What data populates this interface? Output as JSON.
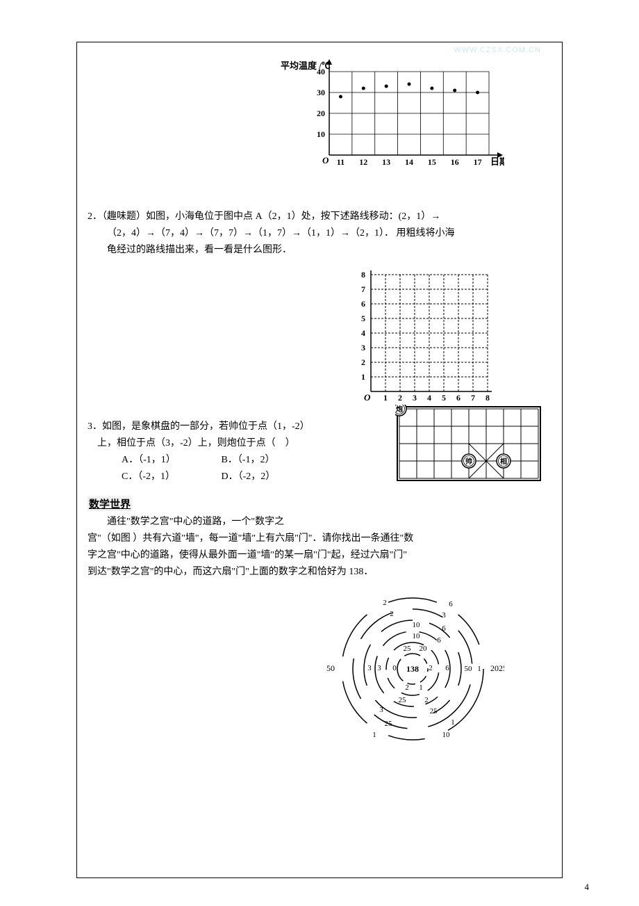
{
  "watermark": "WWW.CZSX.COM.CN",
  "page_number": "4",
  "chart1": {
    "type": "scatter",
    "y_axis_label": "平均温度 /℃",
    "x_axis_label": "日期",
    "x_ticks": [
      "11",
      "12",
      "13",
      "14",
      "15",
      "16",
      "17"
    ],
    "y_ticks": [
      "10",
      "20",
      "30",
      "40"
    ],
    "ylim": [
      0,
      40
    ],
    "ytick_step": 10,
    "points_x": [
      11,
      12,
      13,
      14,
      15,
      16,
      17
    ],
    "points_y": [
      28,
      32,
      33,
      34,
      32,
      31,
      30
    ],
    "axis_color": "#000000",
    "grid_color": "#000000",
    "point_color": "#000000",
    "background_color": "#ffffff",
    "label_fontsize": 13
  },
  "problem2": {
    "number": "2．",
    "tag": "（趣味题）",
    "text_line1": "如图，小海龟位于图中点 A（2，1）处，按下述路线移动：(2，1）→",
    "text_line2": "（2，4）→（7，4）→（7，7）→（1，7）→（1，1）→（2，1）． 用粗线将小海",
    "text_line3": "龟经过的路线描出来，看一看是什么图形．"
  },
  "grid2": {
    "type": "grid",
    "x_ticks": [
      "1",
      "2",
      "3",
      "4",
      "5",
      "6",
      "7",
      "8"
    ],
    "y_ticks": [
      "1",
      "2",
      "3",
      "4",
      "5",
      "6",
      "7",
      "8"
    ],
    "origin_label": "O",
    "line_color": "#000000",
    "dash": "3,2",
    "cell": 21
  },
  "problem3": {
    "number": "3．",
    "text_line1": "如图，是象棋盘的一部分，若帅位于点（1，-2）",
    "text_line2": "上，相位于点（3，-2）上，则炮位于点（　）",
    "options": {
      "A": "A．（-1，1）",
      "B": "B．（-1，2）",
      "C": "C．（-2，1）",
      "D": "D．（-2，2）"
    }
  },
  "chess": {
    "type": "grid",
    "cols": 8,
    "rows": 4,
    "cell": 25,
    "border_color": "#000000",
    "pieces": {
      "pao": {
        "label": "炮",
        "col": 0,
        "row": 0
      },
      "shuai": {
        "label": "帅",
        "col": 4,
        "row": 3
      },
      "xiang": {
        "label": "相",
        "col": 6,
        "row": 3
      }
    },
    "cross_col": 5,
    "cross_row_top": 2
  },
  "math_world": {
    "title": "数学世界",
    "line1": "通往\"数学之宫\"中心的道路，一个\"数字之",
    "line2": "宫\"（如图 ）共有六道\"墙\"，每一道\"墙\"上有六扇\"门\"．请你找出一条通往\"数",
    "line3": "字之宫\"中心的道路，使得从最外面一道\"墙\"的某一扇\"门\"起，经过六扇\"门\"",
    "line4": "到达\"数学之宫\"的中心，而这六扇\"门\"上面的数字之和恰好为 138．"
  },
  "maze": {
    "type": "concentric",
    "center_label": "138",
    "radii": [
      22,
      38,
      54,
      70,
      86,
      102
    ],
    "ring_color": "#000000",
    "background_color": "#ffffff",
    "labels": {
      "left_out": "50",
      "right_out1": "20",
      "right_out2": "25",
      "ring1": {
        "tl": "2",
        "tr": "6",
        "bl": "1",
        "br": "10"
      },
      "ring2": {
        "tl": "2",
        "tr": "3",
        "bl": "25",
        "br": "1"
      },
      "ring3": {
        "t": "10",
        "tr": "6",
        "bl": "3",
        "br": "25",
        "l": "3"
      },
      "ring4": {
        "t": "10",
        "tr": "6",
        "bl": "25",
        "br": "2",
        "l": "3",
        "r": "6"
      },
      "ring5": {
        "t": "25",
        "tr": "20",
        "bl": "2",
        "br": "1",
        "l": "0",
        "r": "2"
      },
      "inner_right": "50",
      "inner_right2": "1"
    }
  }
}
